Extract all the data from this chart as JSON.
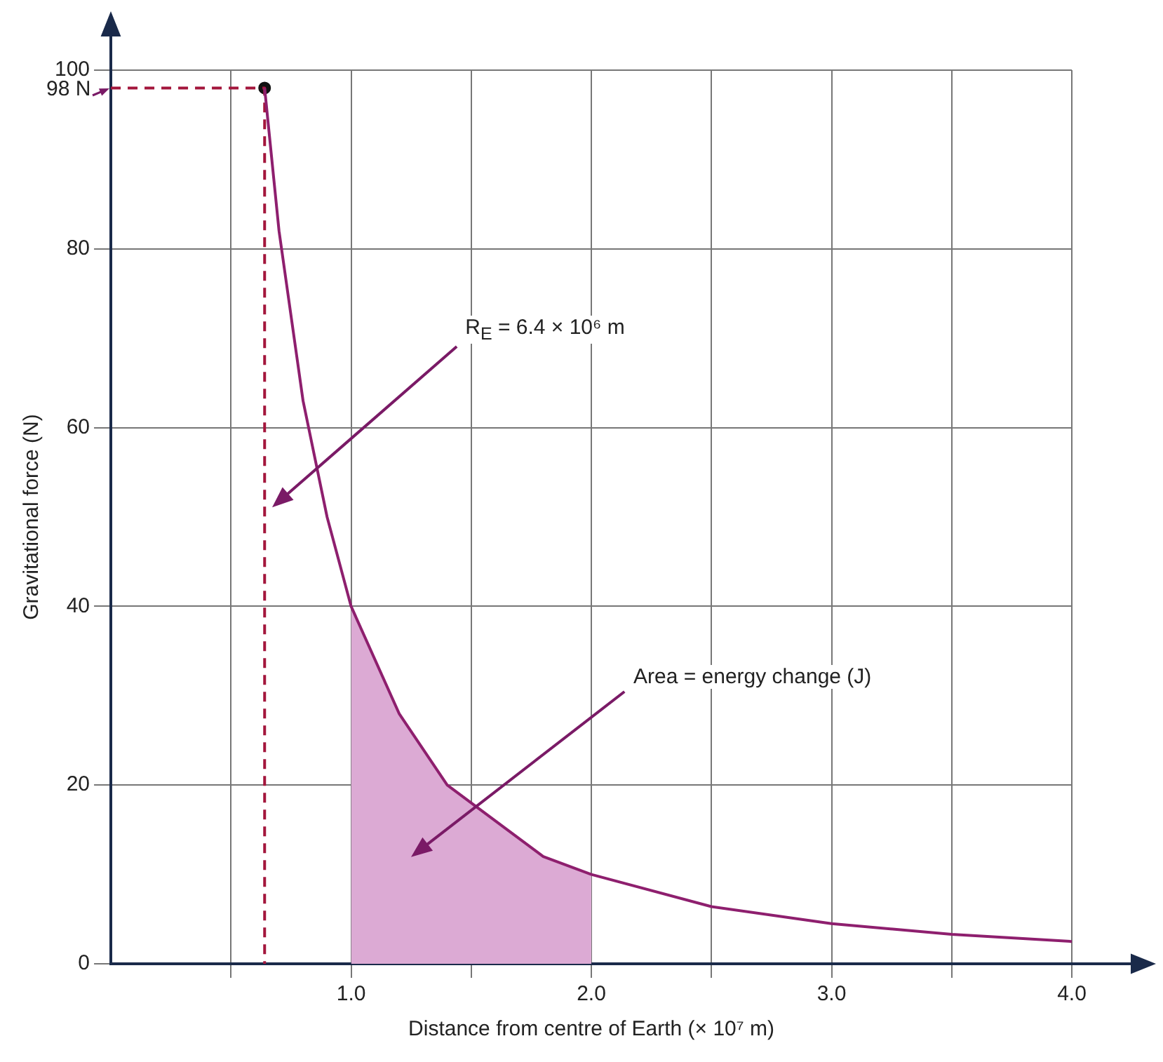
{
  "chart_data": {
    "type": "line",
    "xlabel": "Distance from centre of Earth (× 10⁷ m)",
    "ylabel": "Gravitational force (N)",
    "xlim": [
      0,
      4
    ],
    "ylim": [
      0,
      100
    ],
    "xticks": [
      {
        "value": 0.5,
        "label": null
      },
      {
        "value": 1,
        "label": "1.0"
      },
      {
        "value": 1.5,
        "label": null
      },
      {
        "value": 2,
        "label": "2.0"
      },
      {
        "value": 2.5,
        "label": null
      },
      {
        "value": 3,
        "label": "3.0"
      },
      {
        "value": 3.5,
        "label": null
      },
      {
        "value": 4,
        "label": "4.0"
      }
    ],
    "yticks": [
      0,
      20,
      40,
      60,
      80,
      {
        "value": 98,
        "label": "98 N"
      },
      100
    ],
    "grid": true,
    "legend": false,
    "annotations": [
      "R$_{E}$ = 6.4 × 10⁶ m",
      "Area = energy change (J)"
    ],
    "series": [
      {
        "type": "area",
        "color": "#dcaad4",
        "x": [
          1,
          1.2,
          1.4,
          1.5,
          1.6,
          1.8,
          2
        ],
        "values": [
          40,
          28,
          20,
          18,
          16,
          12,
          10
        ]
      },
      {
        "type": "line",
        "color": "#8e1f6e",
        "x": [
          0.64,
          0.7,
          0.8,
          0.9,
          1,
          1.2,
          1.4,
          1.6,
          1.8,
          2,
          2.5,
          3,
          3.5,
          4
        ],
        "values": [
          98,
          82,
          63,
          50,
          40,
          28,
          20,
          16,
          12,
          10,
          6.4,
          4.5,
          3.3,
          2.5
        ]
      },
      {
        "type": "line",
        "color": "#a3163c",
        "line_style": "dashed",
        "x": [
          0,
          0.64,
          0.64
        ],
        "values": [
          98,
          98,
          0
        ]
      },
      {
        "type": "scatter",
        "color": "#111111",
        "marker": "circle",
        "x": [
          0.64
        ],
        "values": [
          98
        ]
      }
    ]
  }
}
